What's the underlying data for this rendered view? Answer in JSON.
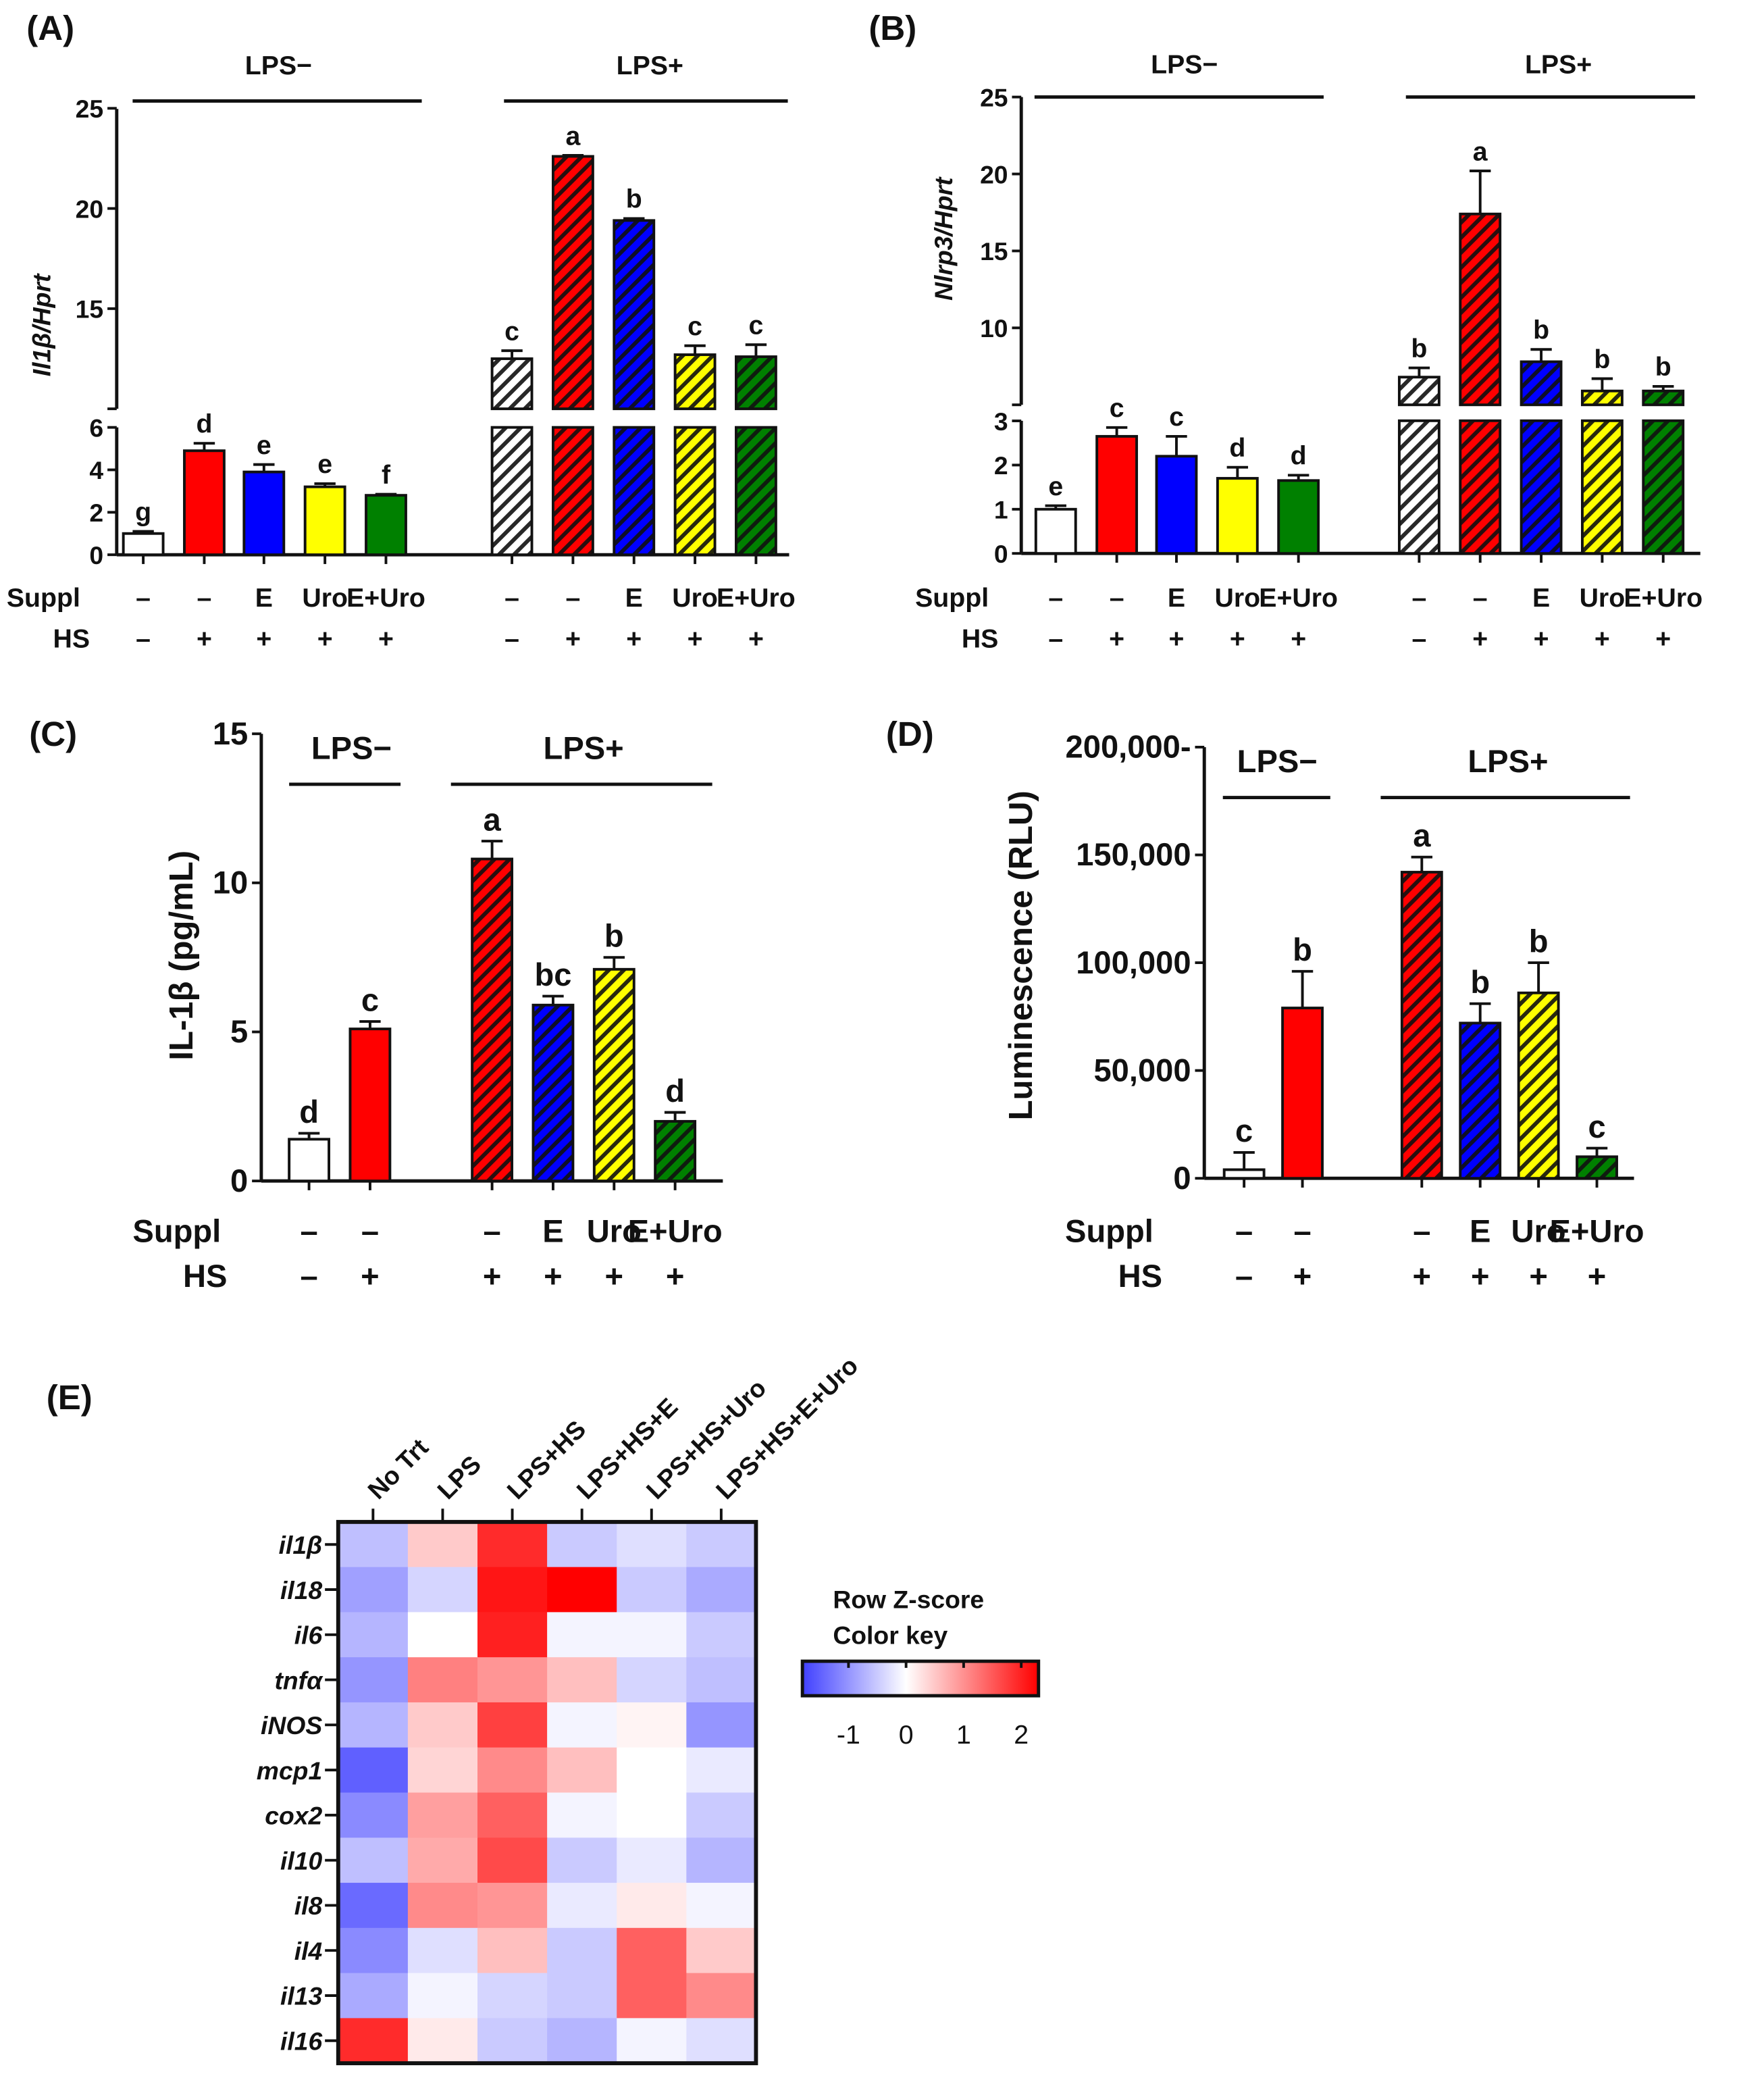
{
  "chart_data": [
    {
      "panel": "(A)",
      "type": "bar",
      "ylabel": "Il1β/Hprt",
      "ylabel_italic": true,
      "yticks_lower": [
        0,
        2,
        4,
        6
      ],
      "yticks_upper": [
        15,
        20,
        25
      ],
      "axis_break": [
        6,
        10
      ],
      "ylim": [
        0,
        25
      ],
      "groups": [
        "LPS−",
        "LPS+"
      ],
      "row_labels": {
        "suppl": "Suppl",
        "hs": "HS"
      },
      "bars": [
        {
          "group": 0,
          "suppl": "–",
          "hs": "–",
          "value": 1.0,
          "error": 0.1,
          "letter": "g",
          "color": "#ffffff",
          "hatched": false
        },
        {
          "group": 0,
          "suppl": "–",
          "hs": "+",
          "value": 4.9,
          "error": 0.35,
          "letter": "d",
          "color": "#ff0000",
          "hatched": false
        },
        {
          "group": 0,
          "suppl": "E",
          "hs": "+",
          "value": 3.9,
          "error": 0.35,
          "letter": "e",
          "color": "#0000ff",
          "hatched": false
        },
        {
          "group": 0,
          "suppl": "Uro",
          "hs": "+",
          "value": 3.2,
          "error": 0.15,
          "letter": "e",
          "color": "#ffff00",
          "hatched": false
        },
        {
          "group": 0,
          "suppl": "E+Uro",
          "hs": "+",
          "value": 2.8,
          "error": 0.05,
          "letter": "f",
          "color": "#008000",
          "hatched": false
        },
        {
          "group": 1,
          "suppl": "–",
          "hs": "–",
          "value": 12.5,
          "error": 0.4,
          "letter": "c",
          "color": "#ffffff",
          "hatched": true
        },
        {
          "group": 1,
          "suppl": "–",
          "hs": "+",
          "value": 22.6,
          "error": 0.05,
          "letter": "a",
          "color": "#ff0000",
          "hatched": true
        },
        {
          "group": 1,
          "suppl": "E",
          "hs": "+",
          "value": 19.4,
          "error": 0.1,
          "letter": "b",
          "color": "#0000ff",
          "hatched": true
        },
        {
          "group": 1,
          "suppl": "Uro",
          "hs": "+",
          "value": 12.7,
          "error": 0.45,
          "letter": "c",
          "color": "#ffff00",
          "hatched": true
        },
        {
          "group": 1,
          "suppl": "E+Uro",
          "hs": "+",
          "value": 12.6,
          "error": 0.6,
          "letter": "c",
          "color": "#008000",
          "hatched": true
        }
      ]
    },
    {
      "panel": "(B)",
      "type": "bar",
      "ylabel": "Nlrp3/Hprt",
      "ylabel_italic": true,
      "yticks_lower": [
        0,
        1,
        2,
        3
      ],
      "yticks_upper": [
        10,
        15,
        20,
        25
      ],
      "axis_break": [
        3,
        5
      ],
      "ylim": [
        0,
        25
      ],
      "groups": [
        "LPS−",
        "LPS+"
      ],
      "row_labels": {
        "suppl": "Suppl",
        "hs": "HS"
      },
      "bars": [
        {
          "group": 0,
          "suppl": "–",
          "hs": "–",
          "value": 1.0,
          "error": 0.08,
          "letter": "e",
          "color": "#ffffff",
          "hatched": false
        },
        {
          "group": 0,
          "suppl": "–",
          "hs": "+",
          "value": 2.65,
          "error": 0.2,
          "letter": "c",
          "color": "#ff0000",
          "hatched": false
        },
        {
          "group": 0,
          "suppl": "E",
          "hs": "+",
          "value": 2.2,
          "error": 0.45,
          "letter": "c",
          "color": "#0000ff",
          "hatched": false
        },
        {
          "group": 0,
          "suppl": "Uro",
          "hs": "+",
          "value": 1.7,
          "error": 0.25,
          "letter": "d",
          "color": "#ffff00",
          "hatched": false
        },
        {
          "group": 0,
          "suppl": "E+Uro",
          "hs": "+",
          "value": 1.65,
          "error": 0.12,
          "letter": "d",
          "color": "#008000",
          "hatched": false
        },
        {
          "group": 1,
          "suppl": "–",
          "hs": "–",
          "value": 6.8,
          "error": 0.6,
          "letter": "b",
          "color": "#ffffff",
          "hatched": true
        },
        {
          "group": 1,
          "suppl": "–",
          "hs": "+",
          "value": 17.4,
          "error": 2.8,
          "letter": "a",
          "color": "#ff0000",
          "hatched": true
        },
        {
          "group": 1,
          "suppl": "E",
          "hs": "+",
          "value": 7.8,
          "error": 0.8,
          "letter": "b",
          "color": "#0000ff",
          "hatched": true
        },
        {
          "group": 1,
          "suppl": "Uro",
          "hs": "+",
          "value": 5.9,
          "error": 0.8,
          "letter": "b",
          "color": "#ffff00",
          "hatched": true
        },
        {
          "group": 1,
          "suppl": "E+Uro",
          "hs": "+",
          "value": 5.9,
          "error": 0.3,
          "letter": "b",
          "color": "#008000",
          "hatched": true
        }
      ]
    },
    {
      "panel": "(C)",
      "type": "bar",
      "ylabel": "IL-1β (pg/mL)",
      "ylabel_italic": false,
      "yticks": [
        0,
        5,
        10,
        15
      ],
      "ytick_labels": [
        "0",
        "5",
        "10",
        "15"
      ],
      "ylim": [
        0,
        15
      ],
      "groups": [
        "LPS−",
        "LPS+"
      ],
      "row_labels": {
        "suppl": "Suppl",
        "hs": "HS"
      },
      "bars": [
        {
          "group": 0,
          "suppl": "–",
          "hs": "–",
          "value": 1.4,
          "error": 0.2,
          "letter": "d",
          "color": "#ffffff",
          "hatched": false
        },
        {
          "group": 0,
          "suppl": "–",
          "hs": "+",
          "value": 5.1,
          "error": 0.25,
          "letter": "c",
          "color": "#ff0000",
          "hatched": false
        },
        {
          "group": 1,
          "suppl": "–",
          "hs": "+",
          "value": 10.8,
          "error": 0.6,
          "letter": "a",
          "color": "#ff0000",
          "hatched": true
        },
        {
          "group": 1,
          "suppl": "E",
          "hs": "+",
          "value": 5.9,
          "error": 0.3,
          "letter": "bc",
          "color": "#0000ff",
          "hatched": true
        },
        {
          "group": 1,
          "suppl": "Uro",
          "hs": "+",
          "value": 7.1,
          "error": 0.4,
          "letter": "b",
          "color": "#ffff00",
          "hatched": true
        },
        {
          "group": 1,
          "suppl": "E+Uro",
          "hs": "+",
          "value": 2.0,
          "error": 0.3,
          "letter": "d",
          "color": "#008000",
          "hatched": true
        }
      ]
    },
    {
      "panel": "(D)",
      "type": "bar",
      "ylabel": "Luminescence (RLU)",
      "ylabel_italic": false,
      "yticks": [
        0,
        50000,
        100000,
        150000,
        200000
      ],
      "ytick_labels": [
        "0",
        "50,000",
        "100,000",
        "150,000",
        "200,000-"
      ],
      "ylim": [
        0,
        200000
      ],
      "groups": [
        "LPS−",
        "LPS+"
      ],
      "row_labels": {
        "suppl": "Suppl",
        "hs": "HS"
      },
      "bars": [
        {
          "group": 0,
          "suppl": "–",
          "hs": "–",
          "value": 4000,
          "error": 8000,
          "letter": "c",
          "color": "#ffffff",
          "hatched": false
        },
        {
          "group": 0,
          "suppl": "–",
          "hs": "+",
          "value": 79000,
          "error": 17000,
          "letter": "b",
          "color": "#ff0000",
          "hatched": false
        },
        {
          "group": 1,
          "suppl": "–",
          "hs": "+",
          "value": 142000,
          "error": 7000,
          "letter": "a",
          "color": "#ff0000",
          "hatched": true
        },
        {
          "group": 1,
          "suppl": "E",
          "hs": "+",
          "value": 72000,
          "error": 9000,
          "letter": "b",
          "color": "#0000ff",
          "hatched": true
        },
        {
          "group": 1,
          "suppl": "Uro",
          "hs": "+",
          "value": 86000,
          "error": 14000,
          "letter": "b",
          "color": "#ffff00",
          "hatched": true
        },
        {
          "group": 1,
          "suppl": "E+Uro",
          "hs": "+",
          "value": 10000,
          "error": 4000,
          "letter": "c",
          "color": "#008000",
          "hatched": true
        }
      ]
    },
    {
      "panel": "(E)",
      "type": "heatmap",
      "columns": [
        "No Trt",
        "LPS",
        "LPS+HS",
        "LPS+HS+E",
        "LPS+HS+Uro",
        "LPS+HS+E+Uro"
      ],
      "rows": [
        "il1β",
        "il18",
        "il6",
        "tnfα",
        "iNOS",
        "mcp1",
        "cox2",
        "il10",
        "il8",
        "il4",
        "il13",
        "il16"
      ],
      "values": [
        [
          -0.6,
          0.5,
          2.0,
          -0.5,
          -0.3,
          -0.5
        ],
        [
          -0.9,
          -0.4,
          2.2,
          2.4,
          -0.5,
          -0.8
        ],
        [
          -0.7,
          0.0,
          2.1,
          -0.1,
          -0.1,
          -0.5
        ],
        [
          -1.0,
          1.2,
          1.0,
          0.6,
          -0.4,
          -0.6
        ],
        [
          -0.7,
          0.5,
          1.8,
          -0.1,
          0.1,
          -1.0
        ],
        [
          -1.5,
          0.4,
          1.1,
          0.6,
          0.0,
          -0.2
        ],
        [
          -1.1,
          0.9,
          1.5,
          -0.1,
          0.0,
          -0.5
        ],
        [
          -0.6,
          0.8,
          1.7,
          -0.5,
          -0.2,
          -0.7
        ],
        [
          -1.4,
          1.1,
          1.0,
          -0.2,
          0.2,
          -0.1
        ],
        [
          -1.1,
          -0.3,
          0.6,
          -0.5,
          1.5,
          0.5
        ],
        [
          -0.8,
          -0.1,
          -0.4,
          -0.5,
          1.5,
          1.1
        ],
        [
          2.0,
          0.2,
          -0.5,
          -0.7,
          -0.1,
          -0.3
        ]
      ],
      "legend_title": [
        "Row Z-score",
        "Color key"
      ],
      "legend_ticks": [
        -1,
        0,
        1,
        2
      ],
      "legend_tick_labels": [
        "-1",
        "0",
        "1",
        "2"
      ],
      "legend_range": [
        -1.8,
        2.3
      ],
      "colors": {
        "low": "#4040ff",
        "mid": "#ffffff",
        "high": "#ff0000"
      }
    }
  ]
}
